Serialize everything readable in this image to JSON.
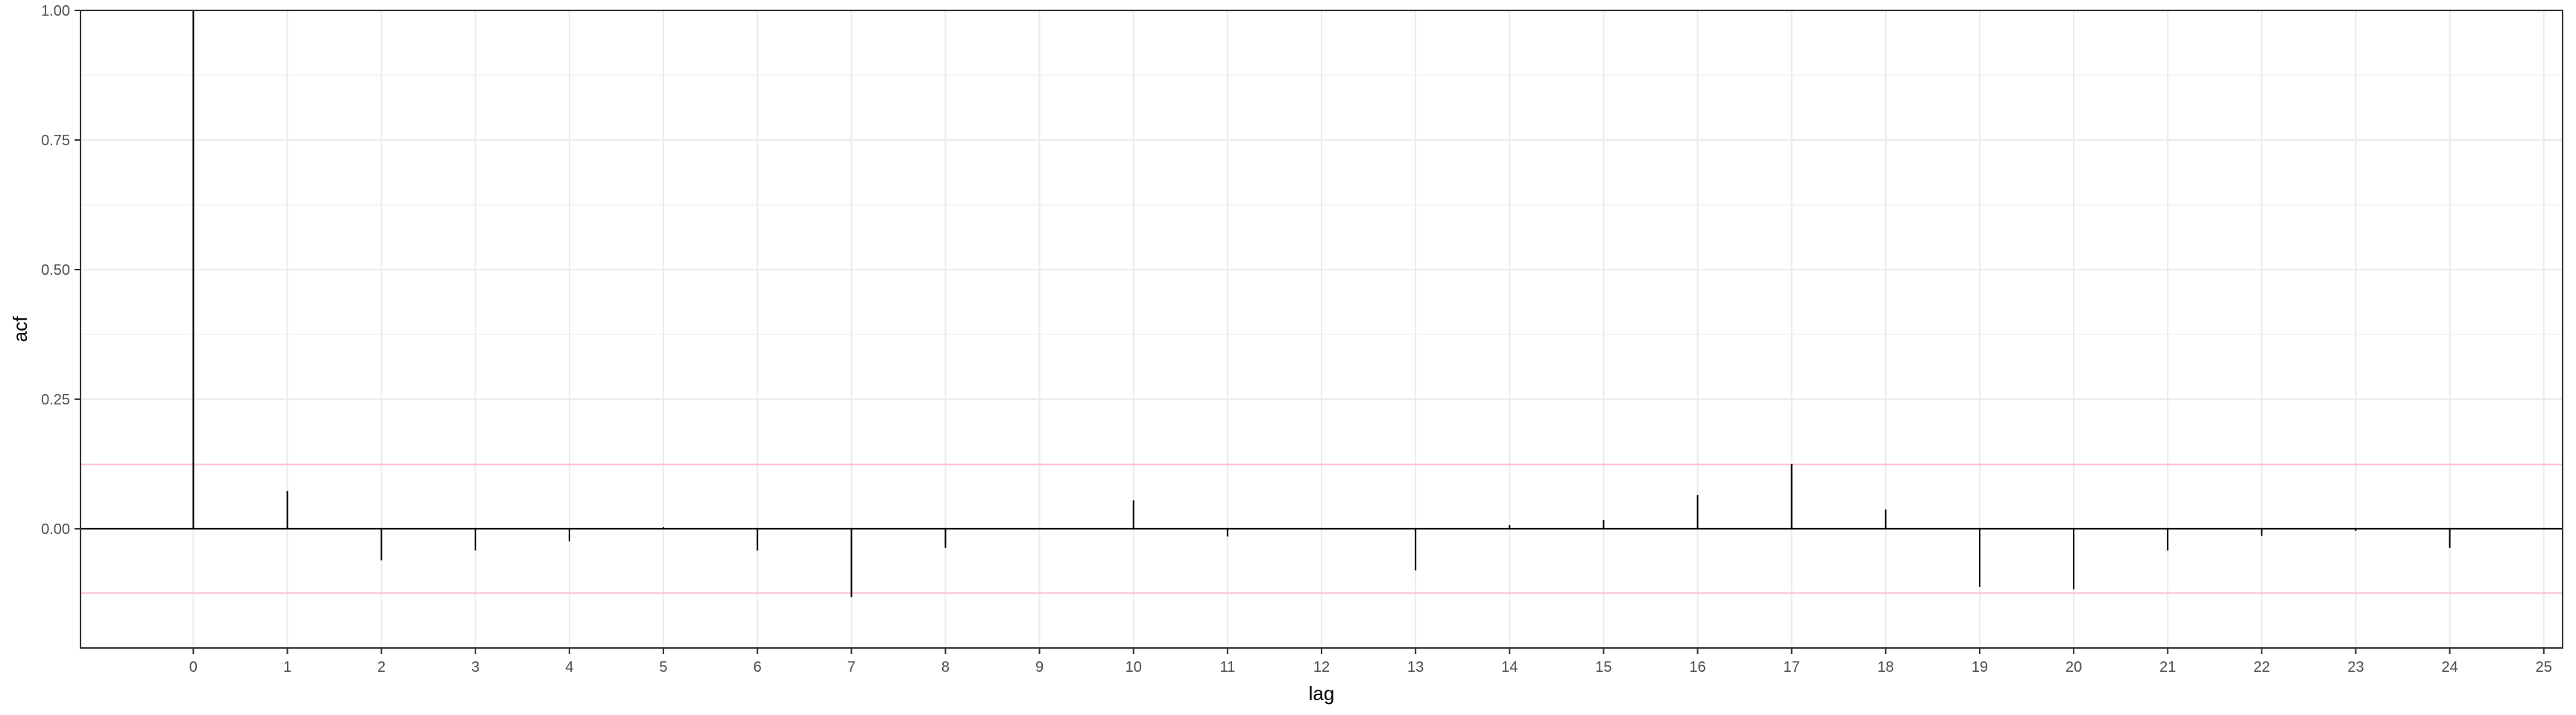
{
  "chart_data": {
    "type": "bar",
    "subtype": "acf",
    "title": "",
    "xlabel": "lag",
    "ylabel": "acf",
    "x": [
      0,
      1,
      2,
      3,
      4,
      5,
      6,
      7,
      8,
      9,
      10,
      11,
      12,
      13,
      14,
      15,
      16,
      17,
      18,
      19,
      20,
      21,
      22,
      23,
      24
    ],
    "values": [
      1.0,
      0.073,
      -0.061,
      -0.042,
      -0.024,
      0.003,
      -0.042,
      -0.132,
      -0.037,
      0.0,
      0.055,
      -0.015,
      0.0,
      -0.08,
      0.007,
      0.017,
      0.065,
      0.125,
      0.037,
      -0.112,
      -0.117,
      -0.042,
      -0.014,
      -0.004,
      -0.037
    ],
    "xlim": [
      -1.2,
      25.2
    ],
    "ylim": [
      -0.23,
      1.0
    ],
    "x_ticks": [
      "0",
      "1",
      "2",
      "3",
      "4",
      "5",
      "6",
      "7",
      "8",
      "9",
      "10",
      "11",
      "12",
      "13",
      "14",
      "15",
      "16",
      "17",
      "18",
      "19",
      "20",
      "21",
      "22",
      "23",
      "24",
      "25"
    ],
    "y_ticks": [
      "0.00",
      "0.25",
      "0.50",
      "0.75",
      "1.00"
    ],
    "y_tick_values": [
      0.0,
      0.25,
      0.5,
      0.75,
      1.0
    ],
    "confidence_bound": 0.124,
    "grid": true,
    "colors": {
      "bars": "#000000",
      "confidence_lines": "#ffc0cb",
      "grid": "#ebebeb",
      "panel_border": "#333333"
    }
  }
}
